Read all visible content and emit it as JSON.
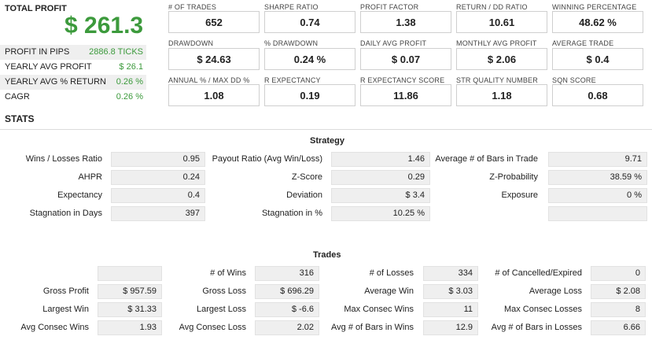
{
  "summary": {
    "total_profit_label": "TOTAL PROFIT",
    "total_profit_value": "$ 261.3",
    "rows": [
      {
        "label": "PROFIT IN PIPS",
        "value": "2886.8 TICKS"
      },
      {
        "label": "YEARLY AVG PROFIT",
        "value": "$ 26.1"
      },
      {
        "label": "YEARLY AVG % RETURN",
        "value": "0.26 %"
      },
      {
        "label": "CAGR",
        "value": "0.26 %"
      }
    ]
  },
  "kpis": [
    {
      "label": "# OF TRADES",
      "value": "652"
    },
    {
      "label": "SHARPE RATIO",
      "value": "0.74"
    },
    {
      "label": "PROFIT FACTOR",
      "value": "1.38"
    },
    {
      "label": "RETURN / DD RATIO",
      "value": "10.61"
    },
    {
      "label": "WINNING PERCENTAGE",
      "value": "48.62 %"
    },
    {
      "label": "DRAWDOWN",
      "value": "$ 24.63"
    },
    {
      "label": "% DRAWDOWN",
      "value": "0.24 %"
    },
    {
      "label": "DAILY AVG PROFIT",
      "value": "$ 0.07"
    },
    {
      "label": "MONTHLY AVG PROFIT",
      "value": "$ 2.06"
    },
    {
      "label": "AVERAGE TRADE",
      "value": "$ 0.4"
    },
    {
      "label": "ANNUAL % / MAX DD %",
      "value": "1.08"
    },
    {
      "label": "R EXPECTANCY",
      "value": "0.19"
    },
    {
      "label": "R EXPECTANCY SCORE",
      "value": "11.86"
    },
    {
      "label": "STR QUALITY NUMBER",
      "value": "1.18"
    },
    {
      "label": "SQN SCORE",
      "value": "0.68"
    }
  ],
  "stats_title": "STATS",
  "strategy": {
    "title": "Strategy",
    "rows": [
      [
        {
          "label": "Wins / Losses Ratio",
          "value": "0.95"
        },
        {
          "label": "Payout Ratio (Avg Win/Loss)",
          "value": "1.46"
        },
        {
          "label": "Average # of Bars in Trade",
          "value": "9.71"
        }
      ],
      [
        {
          "label": "AHPR",
          "value": "0.24"
        },
        {
          "label": "Z-Score",
          "value": "0.29"
        },
        {
          "label": "Z-Probability",
          "value": "38.59 %"
        }
      ],
      [
        {
          "label": "Expectancy",
          "value": "0.4"
        },
        {
          "label": "Deviation",
          "value": "$ 3.4"
        },
        {
          "label": "Exposure",
          "value": "0 %"
        }
      ],
      [
        {
          "label": "Stagnation in Days",
          "value": "397"
        },
        {
          "label": "Stagnation in %",
          "value": "10.25 %"
        },
        {
          "label": "",
          "value": ""
        }
      ]
    ]
  },
  "trades": {
    "title": "Trades",
    "rows": [
      [
        {
          "label": "",
          "value": ""
        },
        {
          "label": "# of Wins",
          "value": "316"
        },
        {
          "label": "# of Losses",
          "value": "334"
        },
        {
          "label": "# of Cancelled/Expired",
          "value": "0"
        }
      ],
      [
        {
          "label": "Gross Profit",
          "value": "$ 957.59"
        },
        {
          "label": "Gross Loss",
          "value": "$ 696.29"
        },
        {
          "label": "Average Win",
          "value": "$ 3.03"
        },
        {
          "label": "Average Loss",
          "value": "$ 2.08"
        }
      ],
      [
        {
          "label": "Largest Win",
          "value": "$ 31.33"
        },
        {
          "label": "Largest Loss",
          "value": "$ -6.6"
        },
        {
          "label": "Max Consec Wins",
          "value": "11"
        },
        {
          "label": "Max Consec Losses",
          "value": "8"
        }
      ],
      [
        {
          "label": "Avg Consec Wins",
          "value": "1.93"
        },
        {
          "label": "Avg Consec Loss",
          "value": "2.02"
        },
        {
          "label": "Avg # of Bars in Wins",
          "value": "12.9"
        },
        {
          "label": "Avg # of Bars in Losses",
          "value": "6.66"
        }
      ]
    ]
  }
}
